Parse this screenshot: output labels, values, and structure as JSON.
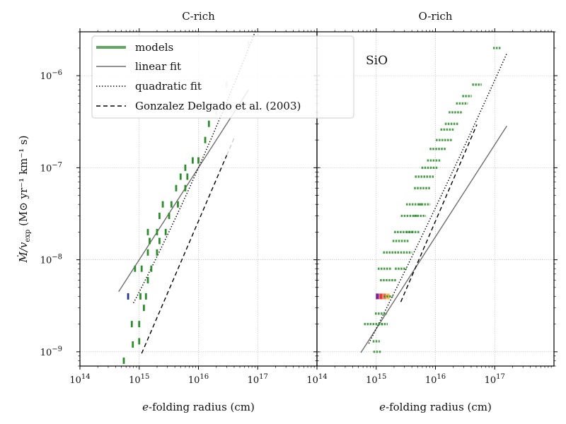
{
  "chart_data": {
    "type": "scatter",
    "colors": {
      "model": "#2e8b2e",
      "model_light": "#a8cfa8",
      "linear_fit": "#6e6e6e",
      "quadratic_fit": "#000000",
      "gd03": "#000000",
      "grid": "#b8b8b8"
    },
    "ylabel": "Ṁ/v_exp (M⊙ yr⁻¹ km⁻¹ s)",
    "ylabel_parts": {
      "main": "Ṁ/v",
      "sub": "exp",
      "units": "(M⊙ yr⁻¹ km⁻¹ s)"
    },
    "ylim": [
      7e-10,
      3e-06
    ],
    "y_ticks": [
      {
        "value": 1e-09,
        "base": "10",
        "exp": "−9"
      },
      {
        "value": 1e-08,
        "base": "10",
        "exp": "−8"
      },
      {
        "value": 1e-07,
        "base": "10",
        "exp": "−7"
      },
      {
        "value": 1e-06,
        "base": "10",
        "exp": "−6"
      }
    ],
    "legend": {
      "location": "top-left",
      "entries": [
        {
          "label": "models",
          "style": "model"
        },
        {
          "label": "linear fit",
          "style": "linear"
        },
        {
          "label": "quadratic fit",
          "style": "quadratic"
        },
        {
          "label": "Gonzalez Delgado et al. (2003)",
          "style": "gd03"
        }
      ]
    },
    "panels": [
      {
        "title": "C-rich",
        "xlabel_parts": {
          "italic": "e",
          "rest": "-folding radius (cm)"
        },
        "xlim": [
          100000000000000.0,
          1e+18
        ],
        "x_ticks": [
          {
            "value": 100000000000000.0,
            "base": "10",
            "exp": "14"
          },
          {
            "value": 1000000000000000.0,
            "base": "10",
            "exp": "15"
          },
          {
            "value": 1e+16,
            "base": "10",
            "exp": "16"
          },
          {
            "value": 1e+17,
            "base": "10",
            "exp": "17"
          }
        ],
        "linear_fit": {
          "x_range": [
            450000000000000.0,
            7e+16
          ],
          "log_a": 15.4,
          "log_b": -7.6
        },
        "quadratic_fit": {
          "x_range": [
            800000000000000.0,
            1e+17
          ],
          "log_r0": 15.0,
          "c0": -8.35,
          "c1": 1.25,
          "c2": 0.1
        },
        "gd03": {
          "x_range": [
            1100000000000000.0,
            4e+16
          ],
          "log_a": 15.64,
          "log_b": -8.12,
          "faded_above": 3e+16
        },
        "fade_above_y": 3e-07,
        "models": [
          {
            "x": 650000000000000.0,
            "y": 4e-09,
            "color": "#283593"
          },
          {
            "x": 550000000000000.0,
            "y": 8e-10
          },
          {
            "x": 780000000000000.0,
            "y": 1.2e-09
          },
          {
            "x": 1000000000000000.0,
            "y": 1.3e-09
          },
          {
            "x": 750000000000000.0,
            "y": 2e-09
          },
          {
            "x": 1000000000000000.0,
            "y": 2e-09
          },
          {
            "x": 1200000000000000.0,
            "y": 3e-09
          },
          {
            "x": 1050000000000000.0,
            "y": 4e-09
          },
          {
            "x": 1300000000000000.0,
            "y": 4e-09
          },
          {
            "x": 850000000000000.0,
            "y": 8e-09
          },
          {
            "x": 1100000000000000.0,
            "y": 8e-09
          },
          {
            "x": 1400000000000000.0,
            "y": 6e-09
          },
          {
            "x": 1600000000000000.0,
            "y": 8e-09
          },
          {
            "x": 1400000000000000.0,
            "y": 1.2e-08
          },
          {
            "x": 2000000000000000.0,
            "y": 1.2e-08
          },
          {
            "x": 1500000000000000.0,
            "y": 1.6e-08
          },
          {
            "x": 2200000000000000.0,
            "y": 1.6e-08
          },
          {
            "x": 1400000000000000.0,
            "y": 2e-08
          },
          {
            "x": 2000000000000000.0,
            "y": 2e-08
          },
          {
            "x": 2800000000000000.0,
            "y": 2e-08
          },
          {
            "x": 2200000000000000.0,
            "y": 3e-08
          },
          {
            "x": 3200000000000000.0,
            "y": 3e-08
          },
          {
            "x": 2500000000000000.0,
            "y": 4e-08
          },
          {
            "x": 3500000000000000.0,
            "y": 4e-08
          },
          {
            "x": 4500000000000000.0,
            "y": 4e-08
          },
          {
            "x": 4200000000000000.0,
            "y": 6e-08
          },
          {
            "x": 6000000000000000.0,
            "y": 6e-08
          },
          {
            "x": 5000000000000000.0,
            "y": 8e-08
          },
          {
            "x": 6500000000000000.0,
            "y": 8e-08
          },
          {
            "x": 6000000000000000.0,
            "y": 1e-07
          },
          {
            "x": 8000000000000000.0,
            "y": 1.2e-07
          },
          {
            "x": 1e+16,
            "y": 1.2e-07
          },
          {
            "x": 1.3e+16,
            "y": 2e-07
          },
          {
            "x": 1.5e+16,
            "y": 3e-07
          },
          {
            "x": 2e+16,
            "y": 4e-07
          },
          {
            "x": 3e+16,
            "y": 8e-07
          },
          {
            "x": 7e+16,
            "y": 2.2e-06
          }
        ]
      },
      {
        "title": "O-rich",
        "xlabel_parts": {
          "italic": "e",
          "rest": "-folding radius (cm)"
        },
        "xlim": [
          100000000000000.0,
          1e+18
        ],
        "x_ticks": [
          {
            "value": 100000000000000.0,
            "base": "10",
            "exp": "14"
          },
          {
            "value": 1000000000000000.0,
            "base": "10",
            "exp": "15"
          },
          {
            "value": 1e+16,
            "base": "10",
            "exp": "16"
          },
          {
            "value": 1e+17,
            "base": "10",
            "exp": "17"
          }
        ],
        "annotation": "SiO",
        "linear_fit": {
          "x_range": [
            550000000000000.0,
            1.6e+17
          ],
          "log_a": 15.0,
          "log_b": -8.75
        },
        "quadratic_fit": {
          "x_range": [
            750000000000000.0,
            1.6e+17
          ],
          "log_r0": 15.0,
          "c0": -8.75,
          "c1": 1.28,
          "c2": 0.035
        },
        "gd03": {
          "x_range": [
            2600000000000000.0,
            5e+16
          ],
          "log_a": 15.64,
          "log_b": -8.12,
          "faded_above": 1e+99
        },
        "fade_above_y": 1,
        "models": [
          {
            "x": 1050000000000000.0,
            "y": 1e-09,
            "half_width": 0.07
          },
          {
            "x": 1000000000000000.0,
            "y": 1.3e-09,
            "half_width": 0.06
          },
          {
            "x": 900000000000000.0,
            "y": 2e-09,
            "half_width": 0.16
          },
          {
            "x": 1300000000000000.0,
            "y": 2e-09,
            "half_width": 0.08
          },
          {
            "x": 1200000000000000.0,
            "y": 2.6e-09,
            "half_width": 0.1
          },
          {
            "x": 1300000000000000.0,
            "y": 4e-09,
            "half_width": 0.12,
            "colors": [
              "#7b1fa2",
              "#e53935",
              "#ff7043",
              "#ffb74d"
            ]
          },
          {
            "x": 1600000000000000.0,
            "y": 4e-09,
            "half_width": 0.08
          },
          {
            "x": 1600000000000000.0,
            "y": 6e-09,
            "half_width": 0.14
          },
          {
            "x": 1400000000000000.0,
            "y": 8e-09,
            "half_width": 0.12
          },
          {
            "x": 2600000000000000.0,
            "y": 8e-09,
            "half_width": 0.1
          },
          {
            "x": 1800000000000000.0,
            "y": 1.2e-08,
            "half_width": 0.14
          },
          {
            "x": 3200000000000000.0,
            "y": 1.2e-08,
            "half_width": 0.1
          },
          {
            "x": 2600000000000000.0,
            "y": 1.6e-08,
            "half_width": 0.14
          },
          {
            "x": 2900000000000000.0,
            "y": 2e-08,
            "half_width": 0.16
          },
          {
            "x": 4200000000000000.0,
            "y": 2e-08,
            "half_width": 0.12
          },
          {
            "x": 3600000000000000.0,
            "y": 3e-08,
            "half_width": 0.14
          },
          {
            "x": 5500000000000000.0,
            "y": 3e-08,
            "half_width": 0.1
          },
          {
            "x": 4400000000000000.0,
            "y": 4e-08,
            "half_width": 0.14
          },
          {
            "x": 6500000000000000.0,
            "y": 4e-08,
            "half_width": 0.1
          },
          {
            "x": 6000000000000000.0,
            "y": 6e-08,
            "half_width": 0.14
          },
          {
            "x": 6500000000000000.0,
            "y": 8e-08,
            "half_width": 0.16
          },
          {
            "x": 8000000000000000.0,
            "y": 1e-07,
            "half_width": 0.14
          },
          {
            "x": 9500000000000000.0,
            "y": 1.2e-07,
            "half_width": 0.12
          },
          {
            "x": 1.1e+16,
            "y": 1.6e-07,
            "half_width": 0.14
          },
          {
            "x": 1.4e+16,
            "y": 2e-07,
            "half_width": 0.14
          },
          {
            "x": 1.6e+16,
            "y": 2.6e-07,
            "half_width": 0.12
          },
          {
            "x": 1.9e+16,
            "y": 3e-07,
            "half_width": 0.12
          },
          {
            "x": 2.2e+16,
            "y": 4e-07,
            "half_width": 0.12
          },
          {
            "x": 2.8e+16,
            "y": 5e-07,
            "half_width": 0.1
          },
          {
            "x": 3.4e+16,
            "y": 6e-07,
            "half_width": 0.08
          },
          {
            "x": 5e+16,
            "y": 8e-07,
            "half_width": 0.08
          },
          {
            "x": 1.1e+17,
            "y": 2e-06,
            "half_width": 0.07
          }
        ]
      }
    ]
  }
}
